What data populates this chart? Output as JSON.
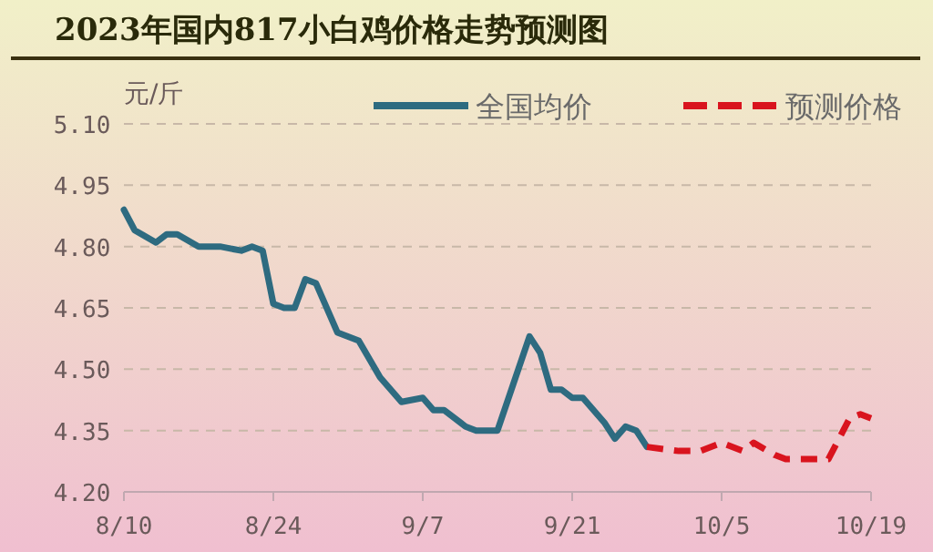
{
  "chart_data": {
    "type": "line",
    "title": "2023年国内817小白鸡价格走势预测图",
    "ylabel": "元/斤",
    "xlim": [
      "2023-08-10",
      "2023-10-19"
    ],
    "xticks": [
      {
        "value": "2023-08-10",
        "label": "8/10"
      },
      {
        "value": "2023-08-24",
        "label": "8/24"
      },
      {
        "value": "2023-09-07",
        "label": "9/7"
      },
      {
        "value": "2023-09-21",
        "label": "9/21"
      },
      {
        "value": "2023-10-05",
        "label": "10/5"
      },
      {
        "value": "2023-10-19",
        "label": "10/19"
      }
    ],
    "ylim": [
      4.2,
      5.1
    ],
    "yticks": [
      {
        "value": 4.2,
        "label": "4.20"
      },
      {
        "value": 4.35,
        "label": "4.35"
      },
      {
        "value": 4.5,
        "label": "4.50"
      },
      {
        "value": 4.65,
        "label": "4.65"
      },
      {
        "value": 4.8,
        "label": "4.80"
      },
      {
        "value": 4.95,
        "label": "4.95"
      },
      {
        "value": 5.1,
        "label": "5.10"
      }
    ],
    "grid": "y",
    "legend": "top right",
    "marker": "none",
    "series": [
      {
        "name": "全国均价",
        "color": "#2e6b80",
        "line_style": "solid",
        "x": [
          "2023-08-10",
          "2023-08-11",
          "2023-08-13",
          "2023-08-14",
          "2023-08-15",
          "2023-08-17",
          "2023-08-19",
          "2023-08-21",
          "2023-08-22",
          "2023-08-23",
          "2023-08-24",
          "2023-08-25",
          "2023-08-26",
          "2023-08-27",
          "2023-08-28",
          "2023-08-30",
          "2023-09-01",
          "2023-09-03",
          "2023-09-05",
          "2023-09-07",
          "2023-09-08",
          "2023-09-09",
          "2023-09-11",
          "2023-09-12",
          "2023-09-14",
          "2023-09-17",
          "2023-09-18",
          "2023-09-19",
          "2023-09-20",
          "2023-09-21",
          "2023-09-22",
          "2023-09-24",
          "2023-09-25",
          "2023-09-26",
          "2023-09-27",
          "2023-09-28"
        ],
        "values": [
          4.89,
          4.84,
          4.81,
          4.83,
          4.83,
          4.8,
          4.8,
          4.79,
          4.8,
          4.79,
          4.66,
          4.65,
          4.65,
          4.72,
          4.71,
          4.59,
          4.57,
          4.48,
          4.42,
          4.43,
          4.4,
          4.4,
          4.36,
          4.35,
          4.35,
          4.58,
          4.54,
          4.45,
          4.45,
          4.43,
          4.43,
          4.37,
          4.33,
          4.36,
          4.35,
          4.31
        ]
      },
      {
        "name": "预测价格",
        "color": "#d9141e",
        "line_style": "dashed",
        "x": [
          "2023-09-28",
          "2023-10-01",
          "2023-10-03",
          "2023-10-05",
          "2023-10-07",
          "2023-10-08",
          "2023-10-10",
          "2023-10-11",
          "2023-10-15",
          "2023-10-17",
          "2023-10-18",
          "2023-10-19"
        ],
        "values": [
          4.31,
          4.3,
          4.3,
          4.32,
          4.3,
          4.32,
          4.29,
          4.28,
          4.28,
          4.38,
          4.39,
          4.38
        ]
      }
    ]
  }
}
